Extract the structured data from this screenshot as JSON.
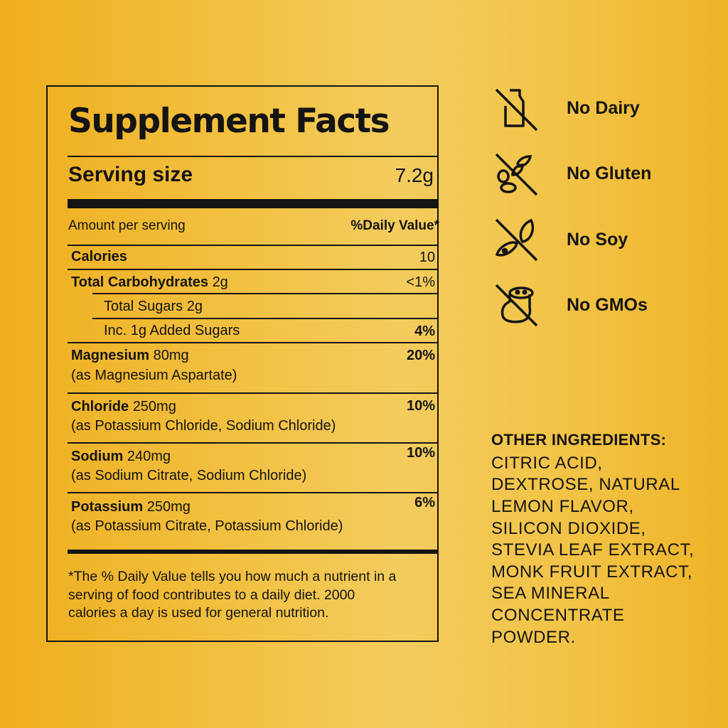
{
  "label": {
    "title": "Supplement Facts",
    "serving_size_label": "Serving size",
    "serving_size_value": "7.2g",
    "amount_per_serving": "Amount per serving",
    "daily_value_header": "%Daily Value*",
    "rows": [
      {
        "name": "Calories",
        "amount": "",
        "dv": "10"
      },
      {
        "name": "Total Carbohydrates",
        "amount": "2g",
        "dv": "<1%"
      },
      {
        "name": "Total Sugars 2g",
        "amount": "",
        "dv": ""
      },
      {
        "name": "Inc. 1g Added Sugars",
        "amount": "",
        "dv": "4%"
      },
      {
        "name": "Magnesium",
        "amount": "80mg",
        "source": "(as Magnesium Aspartate)",
        "dv": "20%"
      },
      {
        "name": "Chloride",
        "amount": "250mg",
        "source": "(as Potassium Chloride, Sodium Chloride)",
        "dv": "10%"
      },
      {
        "name": "Sodium",
        "amount": "240mg",
        "source": "(as Sodium Citrate, Sodium Chloride)",
        "dv": "10%"
      },
      {
        "name": "Potassium",
        "amount": "250mg",
        "source": "(as Potassium Citrate, Potassium Chloride)",
        "dv": "6%"
      }
    ],
    "footnote": [
      "*The % Daily Value tells you how much a nutrient in a",
      "serving of food contributes to a daily diet. 2000",
      "calories a day is used for general nutrition."
    ]
  },
  "claims": [
    {
      "icon": "no-dairy-icon",
      "label": "No Dairy"
    },
    {
      "icon": "no-gluten-icon",
      "label": "No Gluten"
    },
    {
      "icon": "no-soy-icon",
      "label": "No Soy"
    },
    {
      "icon": "no-gmo-icon",
      "label": "No GMOs"
    }
  ],
  "other_ingredients": {
    "heading": "OTHER INGREDIENTS:",
    "lines": [
      "CITRIC ACID,",
      "DEXTROSE, NATURAL",
      "LEMON FLAVOR,",
      "SILICON DIOXIDE,",
      "STEVIA LEAF EXTRACT,",
      "MONK FRUIT EXTRACT,",
      "SEA MINERAL",
      "CONCENTRATE",
      "POWDER."
    ]
  },
  "colors": {
    "background": "#F2C244",
    "ink": "#141414"
  }
}
